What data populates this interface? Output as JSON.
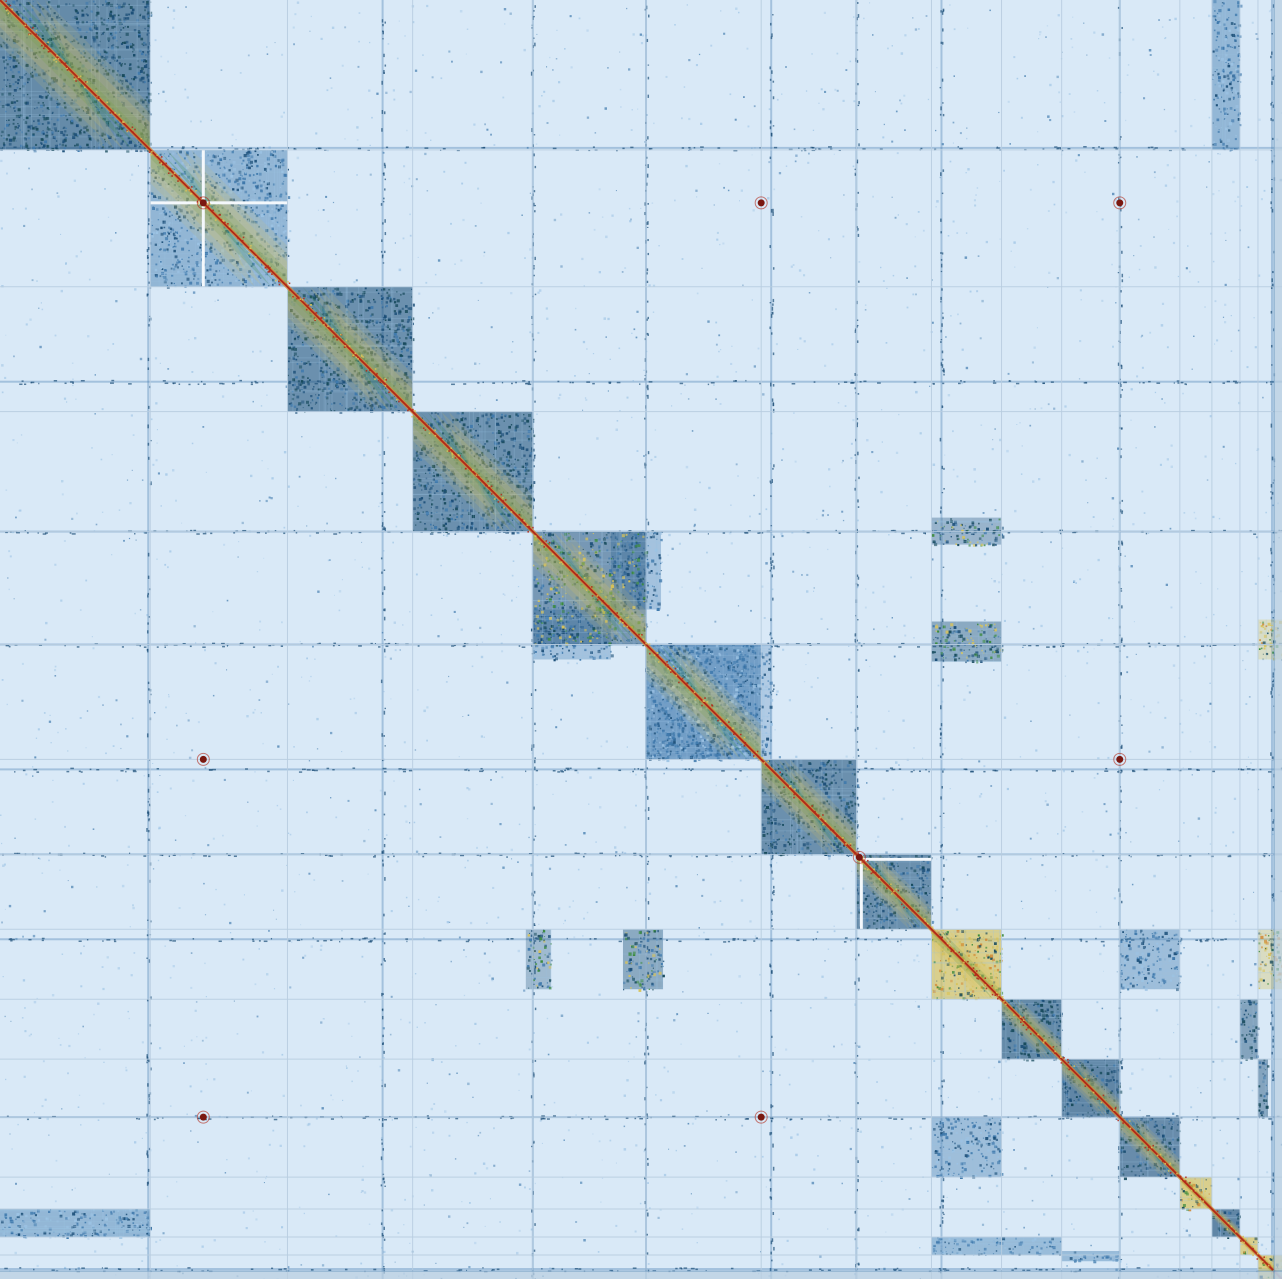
{
  "chart_data": {
    "type": "heatmap",
    "title": "",
    "xlabel": "",
    "ylabel": "",
    "grid": true,
    "legend": "none",
    "colors": {
      "background": "#d9e9f7",
      "light_blue": "#9cc3e4",
      "mid_blue": "#3f79ac",
      "dark_blue": "#1c4f78",
      "deep_teal": "#174a5c",
      "green": "#3b8a3d",
      "yellow": "#d8c35a",
      "orange": "#d18b3a",
      "red": "#b22818",
      "dark_red": "#7a1810",
      "separator": "#b8cde0"
    },
    "matrix_extent": [
      0,
      1280
    ],
    "boundaries": [
      0,
      150,
      287,
      412,
      532,
      645,
      760,
      855,
      930,
      1000,
      1060,
      1118,
      1178,
      1210,
      1238,
      1256,
      1280
    ],
    "blocks": [
      {
        "start": 0,
        "end": 150,
        "density": 0.82,
        "tone": "dark"
      },
      {
        "start": 150,
        "end": 287,
        "density": 0.62,
        "tone": "mid"
      },
      {
        "start": 287,
        "end": 412,
        "density": 0.78,
        "tone": "dark"
      },
      {
        "start": 412,
        "end": 532,
        "density": 0.78,
        "tone": "dark"
      },
      {
        "start": 532,
        "end": 645,
        "density": 0.7,
        "tone": "mixed"
      },
      {
        "start": 645,
        "end": 760,
        "density": 0.72,
        "tone": "mid"
      },
      {
        "start": 760,
        "end": 855,
        "density": 0.78,
        "tone": "dark"
      },
      {
        "start": 855,
        "end": 930,
        "density": 0.78,
        "tone": "dark"
      },
      {
        "start": 930,
        "end": 1000,
        "density": 0.9,
        "tone": "warm"
      },
      {
        "start": 1000,
        "end": 1060,
        "density": 0.82,
        "tone": "dark"
      },
      {
        "start": 1060,
        "end": 1118,
        "density": 0.85,
        "tone": "dark"
      },
      {
        "start": 1118,
        "end": 1178,
        "density": 0.8,
        "tone": "dark"
      },
      {
        "start": 1178,
        "end": 1210,
        "density": 0.9,
        "tone": "warm"
      },
      {
        "start": 1210,
        "end": 1238,
        "density": 0.85,
        "tone": "dark"
      },
      {
        "start": 1238,
        "end": 1256,
        "density": 0.9,
        "tone": "warm"
      },
      {
        "start": 1256,
        "end": 1280,
        "density": 0.9,
        "tone": "warm"
      }
    ],
    "off_diagonal_blocks": [
      {
        "rows": [
          0,
          150
        ],
        "cols": [
          1210,
          1238
        ],
        "density": 0.6,
        "tone": "mid"
      },
      {
        "rows": [
          1210,
          1238
        ],
        "cols": [
          0,
          150
        ],
        "density": 0.6,
        "tone": "mid"
      },
      {
        "rows": [
          532,
          610
        ],
        "cols": [
          610,
          660
        ],
        "density": 0.45,
        "tone": "mid"
      },
      {
        "rows": [
          610,
          660
        ],
        "cols": [
          532,
          610
        ],
        "density": 0.45,
        "tone": "mid"
      },
      {
        "rows": [
          645,
          760
        ],
        "cols": [
          645,
          770
        ],
        "density": 0.35,
        "tone": "mid"
      },
      {
        "rows": [
          930,
          990
        ],
        "cols": [
          622,
          662
        ],
        "density": 0.55,
        "tone": "mixed"
      },
      {
        "rows": [
          622,
          662
        ],
        "cols": [
          930,
          1000
        ],
        "density": 0.55,
        "tone": "mixed"
      },
      {
        "rows": [
          930,
          990
        ],
        "cols": [
          1118,
          1178
        ],
        "density": 0.5,
        "tone": "mid"
      },
      {
        "rows": [
          1118,
          1178
        ],
        "cols": [
          930,
          1000
        ],
        "density": 0.5,
        "tone": "mid"
      },
      {
        "rows": [
          518,
          545
        ],
        "cols": [
          930,
          1000
        ],
        "density": 0.45,
        "tone": "mixed"
      },
      {
        "rows": [
          930,
          990
        ],
        "cols": [
          525,
          550
        ],
        "density": 0.4,
        "tone": "mixed"
      },
      {
        "rows": [
          1238,
          1256
        ],
        "cols": [
          930,
          1060
        ],
        "density": 0.55,
        "tone": "mid"
      },
      {
        "rows": [
          1252,
          1262
        ],
        "cols": [
          1060,
          1118
        ],
        "density": 0.55,
        "tone": "mid"
      },
      {
        "rows": [
          1000,
          1060
        ],
        "cols": [
          1238,
          1256
        ],
        "density": 0.6,
        "tone": "dark"
      },
      {
        "rows": [
          1060,
          1118
        ],
        "cols": [
          1256,
          1266
        ],
        "density": 0.6,
        "tone": "dark"
      },
      {
        "rows": [
          930,
          990
        ],
        "cols": [
          1256,
          1280
        ],
        "density": 0.45,
        "tone": "warm"
      },
      {
        "rows": [
          620,
          660
        ],
        "cols": [
          1256,
          1280
        ],
        "density": 0.4,
        "tone": "warm"
      }
    ],
    "hot_spots": [
      {
        "row": 203,
        "col": 203
      },
      {
        "row": 858,
        "col": 858
      },
      {
        "row": 203,
        "col": 760
      },
      {
        "row": 760,
        "col": 203
      },
      {
        "row": 203,
        "col": 1118
      },
      {
        "row": 1118,
        "col": 203
      },
      {
        "row": 760,
        "col": 1118
      },
      {
        "row": 1118,
        "col": 760
      }
    ],
    "white_gaps": [
      {
        "pos": 203,
        "from": 150,
        "to": 287
      },
      {
        "pos": 860,
        "from": 855,
        "to": 930
      }
    ],
    "interchrom_stripes": [
      148,
      382,
      532,
      645,
      770,
      855,
      940,
      1118,
      1270
    ]
  }
}
